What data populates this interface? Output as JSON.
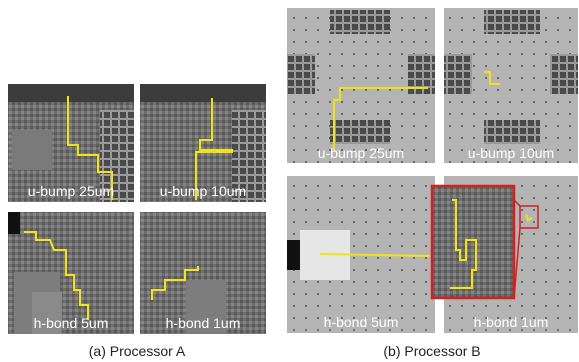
{
  "processor_a": {
    "caption": "(a) Processor A",
    "labels": [
      "u-bump 25um",
      "u-bump 10um",
      "h-bond 5um",
      "h-bond 1um"
    ]
  },
  "processor_b": {
    "caption": "(b) Processor B",
    "labels": [
      "u-bump 25um",
      "u-bump 10um",
      "h-bond 5um",
      "h-bond 1um"
    ]
  }
}
